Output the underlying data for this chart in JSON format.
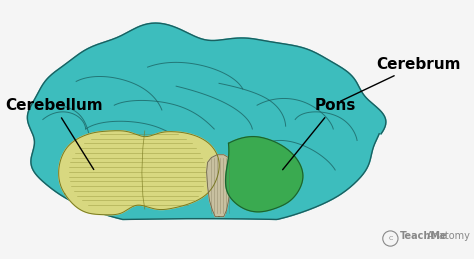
{
  "background_color": "#f5f5f5",
  "cerebrum_color": "#3dbdbd",
  "cerebrum_outline": "#1a6060",
  "cerebellum_color": "#d8d880",
  "cerebellum_outline": "#7a7a20",
  "pons_color": "#3aaa50",
  "pons_outline": "#1a6030",
  "brainstem_color": "#c8c0a0",
  "brainstem_outline": "#706848",
  "label_cerebrum": "Cerebrum",
  "label_cerebellum": "Cerebellum",
  "label_pons": "Pons",
  "watermark_bold": "TeachMe",
  "watermark_regular": "Anatomy",
  "font_size_labels": 10,
  "font_size_watermark": 7
}
